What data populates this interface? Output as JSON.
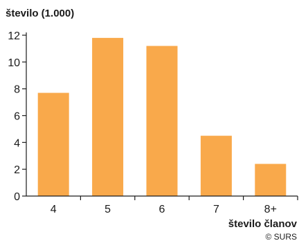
{
  "chart_data": {
    "type": "bar",
    "ylabel": "število (1.000)",
    "xlabel": "število članov",
    "categories": [
      "4",
      "5",
      "6",
      "7",
      "8+"
    ],
    "values": [
      7.7,
      11.8,
      11.2,
      4.5,
      2.4
    ],
    "ylim": [
      0,
      12
    ],
    "yticks": [
      0,
      2,
      4,
      6,
      8,
      10,
      12
    ],
    "bar_color": "#f9a94b",
    "grid": false,
    "legend": "none",
    "credit": "© SURS"
  }
}
